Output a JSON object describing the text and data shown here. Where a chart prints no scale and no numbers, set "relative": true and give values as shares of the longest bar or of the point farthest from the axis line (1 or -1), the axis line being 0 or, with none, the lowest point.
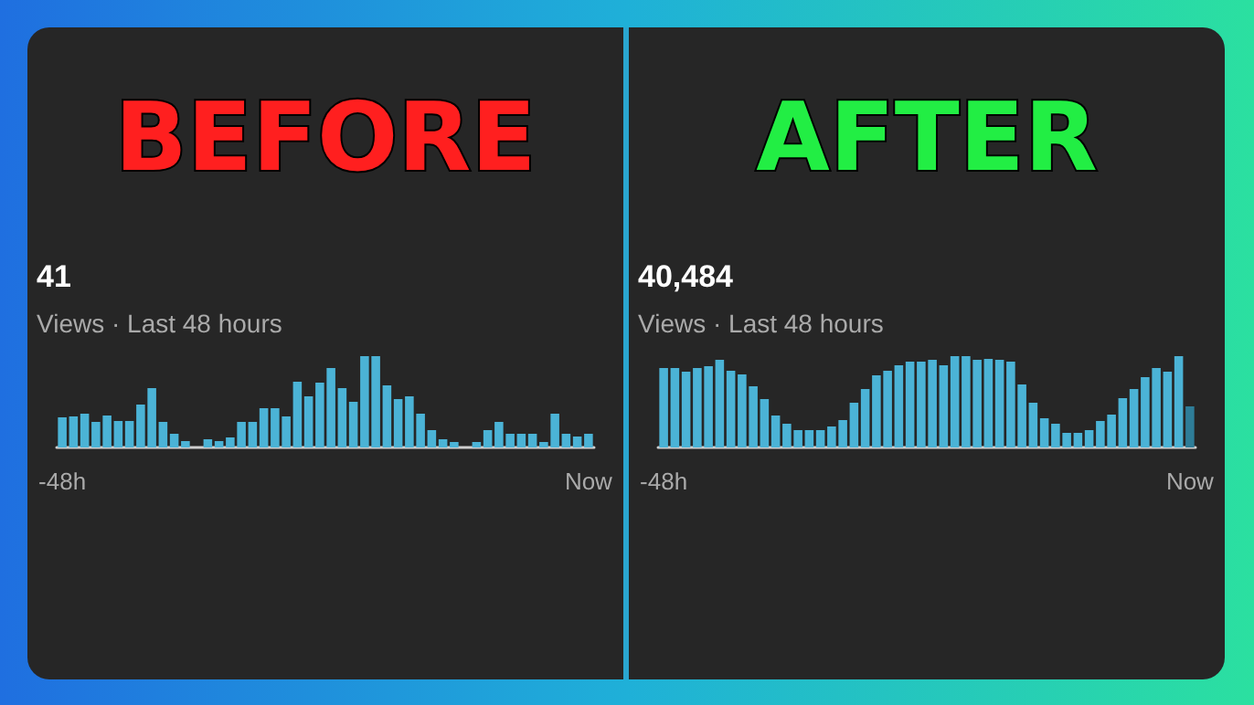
{
  "chart_data": [
    {
      "type": "bar",
      "title": "BEFORE",
      "annotations": [
        "41",
        "Views · Last 48 hours"
      ],
      "relative": true,
      "color": "#4bb3d6",
      "categories": [
        "-48h",
        null,
        null,
        null,
        null,
        null,
        null,
        null,
        null,
        null,
        null,
        null,
        null,
        null,
        null,
        null,
        null,
        null,
        null,
        null,
        null,
        null,
        null,
        null,
        null,
        null,
        null,
        null,
        null,
        null,
        null,
        null,
        null,
        null,
        null,
        null,
        null,
        null,
        null,
        null,
        null,
        null,
        null,
        null,
        null,
        null,
        null,
        "Now"
      ],
      "values": [
        0.33,
        0.34,
        0.37,
        0.28,
        0.35,
        0.29,
        0.29,
        0.47,
        0.65,
        0.28,
        0.15,
        0.07,
        0,
        0.09,
        0.07,
        0.11,
        0.28,
        0.28,
        0.43,
        0.43,
        0.34,
        0.72,
        0.56,
        0.71,
        0.87,
        0.65,
        0.5,
        1,
        1,
        0.68,
        0.53,
        0.56,
        0.37,
        0.19,
        0.09,
        0.06,
        0,
        0.06,
        0.19,
        0.28,
        0.15,
        0.15,
        0.15,
        0.06,
        0.37,
        0.15,
        0.12,
        0.15
      ]
    },
    {
      "type": "bar",
      "title": "AFTER",
      "annotations": [
        "40,484",
        "Views · Last 48 hours"
      ],
      "relative": true,
      "categories": [
        "-48h",
        null,
        null,
        null,
        null,
        null,
        null,
        null,
        null,
        null,
        null,
        null,
        null,
        null,
        null,
        null,
        null,
        null,
        null,
        null,
        null,
        null,
        null,
        null,
        null,
        null,
        null,
        null,
        null,
        null,
        null,
        null,
        null,
        null,
        null,
        null,
        null,
        null,
        null,
        null,
        null,
        null,
        null,
        null,
        null,
        null,
        null,
        "Now"
      ],
      "values": [
        0.87,
        0.87,
        0.83,
        0.87,
        0.89,
        0.96,
        0.84,
        0.8,
        0.67,
        0.53,
        0.35,
        0.26,
        0.19,
        0.19,
        0.19,
        0.23,
        0.3,
        0.49,
        0.64,
        0.79,
        0.84,
        0.9,
        0.94,
        0.94,
        0.96,
        0.9,
        1,
        1,
        0.96,
        0.97,
        0.96,
        0.94,
        0.69,
        0.49,
        0.32,
        0.26,
        0.16,
        0.16,
        0.19,
        0.29,
        0.36,
        0.54,
        0.64,
        0.77,
        0.87,
        0.83,
        1,
        0.45
      ],
      "colors": [
        "#4bb3d6",
        "#4bb3d6",
        "#4bb3d6",
        "#4bb3d6",
        "#4bb3d6",
        "#4bb3d6",
        "#4bb3d6",
        "#4bb3d6",
        "#4bb3d6",
        "#4bb3d6",
        "#4bb3d6",
        "#4bb3d6",
        "#4bb3d6",
        "#4bb3d6",
        "#4bb3d6",
        "#4bb3d6",
        "#4bb3d6",
        "#4bb3d6",
        "#4bb3d6",
        "#4bb3d6",
        "#4bb3d6",
        "#4bb3d6",
        "#4bb3d6",
        "#4bb3d6",
        "#4bb3d6",
        "#4bb3d6",
        "#4bb3d6",
        "#4bb3d6",
        "#4bb3d6",
        "#4bb3d6",
        "#4bb3d6",
        "#4bb3d6",
        "#4bb3d6",
        "#4bb3d6",
        "#4bb3d6",
        "#4bb3d6",
        "#4bb3d6",
        "#4bb3d6",
        "#4bb3d6",
        "#4bb3d6",
        "#4bb3d6",
        "#4bb3d6",
        "#4bb3d6",
        "#4bb3d6",
        "#4bb3d6",
        "#4bb3d6",
        "#4bb3d6",
        "#2e7d98"
      ]
    }
  ]
}
